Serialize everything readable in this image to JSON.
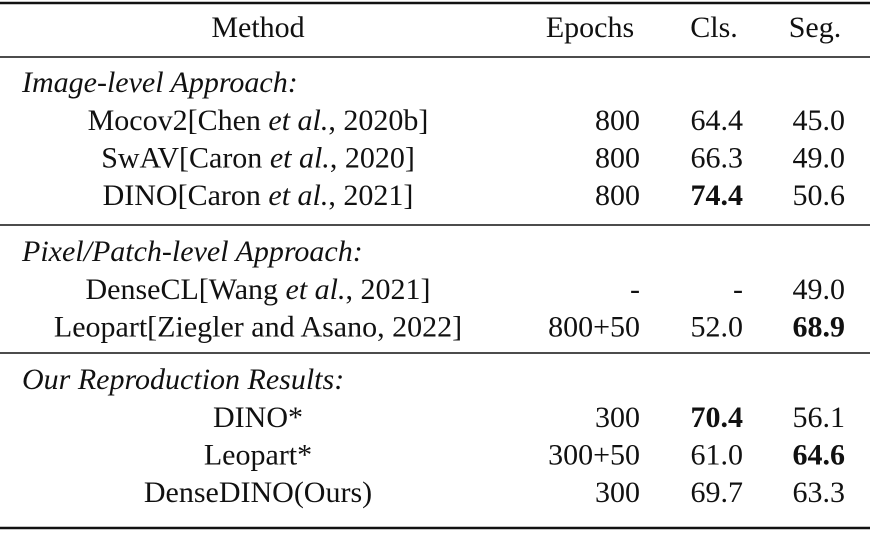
{
  "table": {
    "header": [
      "Method",
      "Epochs",
      "Cls.",
      "Seg."
    ],
    "sections": [
      {
        "title": "Image-level Approach:",
        "rows": [
          {
            "method": [
              "Mocov2[Chen ",
              "et al.",
              ", 2020b]"
            ],
            "cells": [
              "800",
              "64.4",
              "45.0"
            ],
            "bold": [
              false,
              false,
              false
            ]
          },
          {
            "method": [
              "SwAV[Caron ",
              "et al.",
              ", 2020]"
            ],
            "cells": [
              "800",
              "66.3",
              "49.0"
            ],
            "bold": [
              false,
              false,
              false
            ]
          },
          {
            "method": [
              "DINO[Caron ",
              "et al.",
              ", 2021]"
            ],
            "cells": [
              "800",
              "74.4",
              "50.6"
            ],
            "bold": [
              false,
              true,
              false
            ]
          }
        ]
      },
      {
        "title": "Pixel/Patch-level Approach:",
        "rows": [
          {
            "method": [
              "DenseCL[Wang ",
              "et al.",
              ", 2021]"
            ],
            "cells": [
              "-",
              "-",
              "49.0"
            ],
            "bold": [
              false,
              false,
              false
            ]
          },
          {
            "method": [
              "Leopart[Ziegler and Asano, 2022]"
            ],
            "cells": [
              "800+50",
              "52.0",
              "68.9"
            ],
            "bold": [
              false,
              false,
              true
            ]
          }
        ]
      },
      {
        "title": "Our Reproduction Results:",
        "rows": [
          {
            "method": [
              "DINO*"
            ],
            "cells": [
              "300",
              "70.4",
              "56.1"
            ],
            "bold": [
              false,
              true,
              false
            ]
          },
          {
            "method": [
              "Leopart*"
            ],
            "cells": [
              "300+50",
              "61.0",
              "64.6"
            ],
            "bold": [
              false,
              false,
              true
            ]
          },
          {
            "method": [
              "DenseDINO(Ours)"
            ],
            "cells": [
              "300",
              "69.7",
              "63.3"
            ],
            "bold": [
              false,
              false,
              false
            ]
          }
        ]
      }
    ]
  }
}
